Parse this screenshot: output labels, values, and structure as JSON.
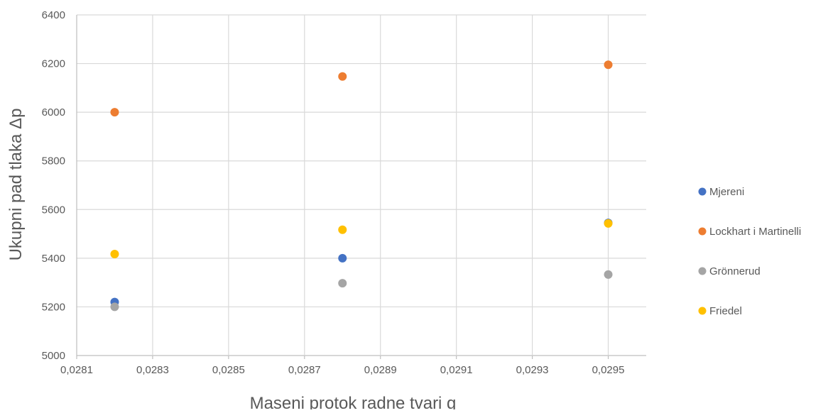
{
  "chart_data": {
    "type": "scatter",
    "title": "",
    "xlabel": "Maseni protok radne tvari g",
    "ylabel": "Ukupni pad tlaka Δp",
    "xlim": [
      0.0281,
      0.0296
    ],
    "ylim": [
      5000,
      6400
    ],
    "x_ticks": [
      "0,0281",
      "0,0283",
      "0,0285",
      "0,0287",
      "0,0289",
      "0,0291",
      "0,0293",
      "0,0295"
    ],
    "x_tick_values": [
      0.0281,
      0.0283,
      0.0285,
      0.0287,
      0.0289,
      0.0291,
      0.0293,
      0.0295
    ],
    "y_ticks": [
      "5000",
      "5200",
      "5400",
      "5600",
      "5800",
      "6000",
      "6200",
      "6400"
    ],
    "y_tick_values": [
      5000,
      5200,
      5400,
      5600,
      5800,
      6000,
      6200,
      6400
    ],
    "grid": true,
    "legend_position": "right",
    "series": [
      {
        "name": "Mjereni",
        "color": "#4472C4",
        "points": [
          {
            "x": 0.0282,
            "y": 5220
          },
          {
            "x": 0.0288,
            "y": 5400
          },
          {
            "x": 0.0295,
            "y": 5545
          }
        ]
      },
      {
        "name": "Lockhart i Martinelli",
        "color": "#ED7D31",
        "points": [
          {
            "x": 0.0282,
            "y": 6000
          },
          {
            "x": 0.0288,
            "y": 6147
          },
          {
            "x": 0.0295,
            "y": 6195
          }
        ]
      },
      {
        "name": "Grönnerud",
        "color": "#A5A5A5",
        "points": [
          {
            "x": 0.0282,
            "y": 5200
          },
          {
            "x": 0.0288,
            "y": 5297
          },
          {
            "x": 0.0295,
            "y": 5333
          }
        ]
      },
      {
        "name": "Friedel",
        "color": "#FFC000",
        "points": [
          {
            "x": 0.0282,
            "y": 5417
          },
          {
            "x": 0.0288,
            "y": 5517
          },
          {
            "x": 0.0295,
            "y": 5543
          }
        ]
      }
    ]
  }
}
